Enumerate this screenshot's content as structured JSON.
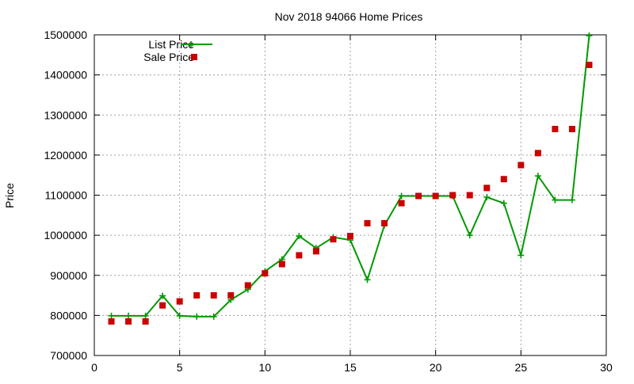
{
  "chart_data": {
    "type": "line",
    "title": "Nov 2018 94066 Home Prices",
    "xlabel": "",
    "ylabel": "Price",
    "xlim": [
      0,
      30
    ],
    "ylim": [
      700000,
      1500000
    ],
    "x_ticks": [
      0,
      5,
      10,
      15,
      20,
      25,
      30
    ],
    "y_ticks": [
      700000,
      800000,
      900000,
      1000000,
      1100000,
      1200000,
      1300000,
      1400000,
      1500000
    ],
    "grid": true,
    "legend_position": "top-left",
    "series": [
      {
        "name": "List Price",
        "style": "line-plus",
        "color": "#009900",
        "x": [
          1,
          2,
          3,
          4,
          5,
          6,
          7,
          8,
          9,
          10,
          11,
          12,
          13,
          14,
          15,
          16,
          17,
          18,
          19,
          20,
          21,
          22,
          23,
          24,
          25,
          26,
          27,
          28,
          29
        ],
        "values": [
          799000,
          799000,
          799000,
          849000,
          799000,
          797000,
          797000,
          839000,
          865000,
          910000,
          940000,
          998000,
          968000,
          995000,
          988000,
          889000,
          1025000,
          1098000,
          1098000,
          1098000,
          1098000,
          1000000,
          1095000,
          1080000,
          950000,
          1148000,
          1088000,
          1088000,
          1498000
        ]
      },
      {
        "name": "Sale Price",
        "style": "square-markers",
        "color": "#cc0000",
        "x": [
          1,
          2,
          3,
          4,
          5,
          6,
          7,
          8,
          9,
          10,
          11,
          12,
          13,
          14,
          15,
          16,
          17,
          18,
          19,
          20,
          21,
          22,
          23,
          24,
          25,
          26,
          27,
          28,
          29
        ],
        "values": [
          785000,
          785000,
          785000,
          825000,
          835000,
          850000,
          850000,
          850000,
          875000,
          905000,
          928000,
          950000,
          960000,
          990000,
          998000,
          1030000,
          1030000,
          1080000,
          1098000,
          1098000,
          1100000,
          1100000,
          1118000,
          1140000,
          1175000,
          1205000,
          1265000,
          1265000,
          1425000
        ]
      }
    ]
  }
}
